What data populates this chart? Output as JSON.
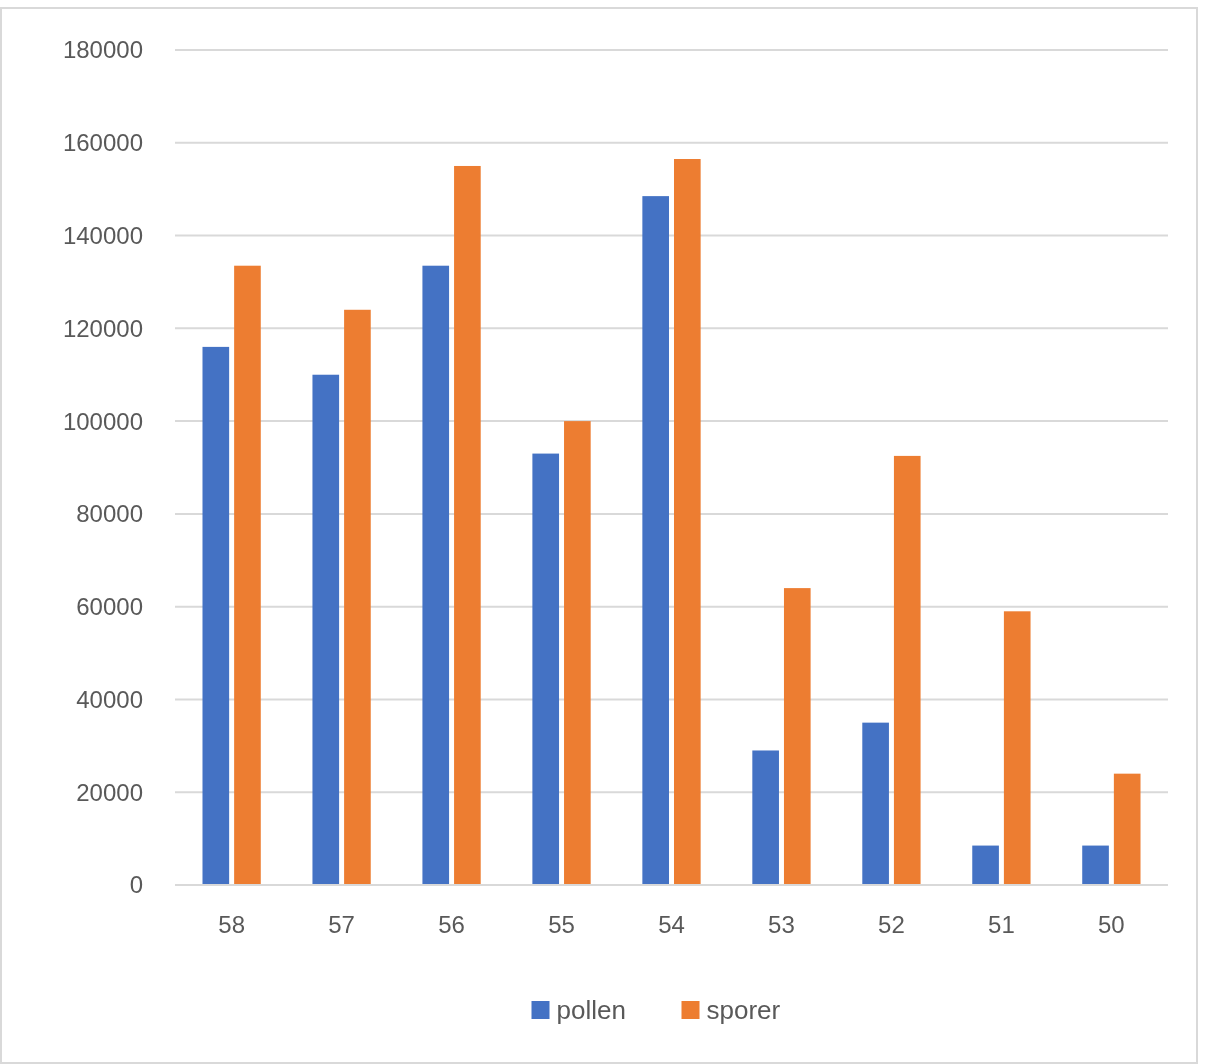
{
  "chart_data": {
    "type": "bar",
    "categories": [
      "58",
      "57",
      "56",
      "55",
      "54",
      "53",
      "52",
      "51",
      "50"
    ],
    "series": [
      {
        "name": "pollen",
        "color": "#4472c4",
        "values": [
          116000,
          110000,
          133500,
          93000,
          148500,
          29000,
          35000,
          8500,
          8500
        ]
      },
      {
        "name": "sporer",
        "color": "#ed7d31",
        "values": [
          133500,
          124000,
          155000,
          100000,
          156500,
          64000,
          92500,
          59000,
          24000
        ]
      }
    ],
    "ylim": [
      0,
      180000
    ],
    "yticks": [
      0,
      20000,
      40000,
      60000,
      80000,
      100000,
      120000,
      140000,
      160000,
      180000
    ],
    "grid": "y",
    "legend": "bottom"
  }
}
